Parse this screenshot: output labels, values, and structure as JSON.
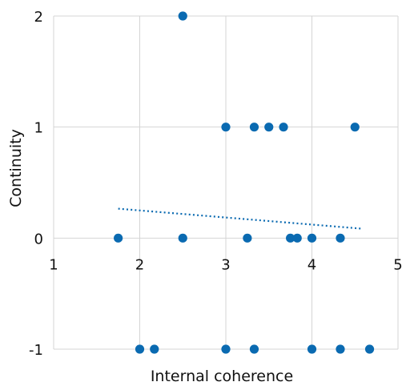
{
  "chart_data": {
    "type": "scatter",
    "xlabel": "Internal coherence",
    "ylabel": "Continuity",
    "xlim": [
      1,
      5
    ],
    "ylim": [
      -1,
      2
    ],
    "x_ticks": [
      "1",
      "2",
      "3",
      "4",
      "5"
    ],
    "y_ticks": [
      "-1",
      "0",
      "1",
      "2"
    ],
    "grid": true,
    "marker_color": "#0a6ab1",
    "trendline": {
      "style": "dotted",
      "color": "#0a6ab1",
      "x": [
        1.75,
        4.58
      ],
      "y": [
        0.265,
        0.085
      ]
    },
    "points": [
      {
        "x": 2.5,
        "y": 2
      },
      {
        "x": 3.0,
        "y": 1
      },
      {
        "x": 3.33,
        "y": 1
      },
      {
        "x": 3.5,
        "y": 1
      },
      {
        "x": 3.67,
        "y": 1
      },
      {
        "x": 4.5,
        "y": 1
      },
      {
        "x": 1.75,
        "y": 0
      },
      {
        "x": 2.5,
        "y": 0
      },
      {
        "x": 3.25,
        "y": 0
      },
      {
        "x": 3.75,
        "y": 0
      },
      {
        "x": 3.83,
        "y": 0
      },
      {
        "x": 4.0,
        "y": 0
      },
      {
        "x": 4.33,
        "y": 0
      },
      {
        "x": 2.0,
        "y": -1
      },
      {
        "x": 2.17,
        "y": -1
      },
      {
        "x": 3.0,
        "y": -1
      },
      {
        "x": 3.33,
        "y": -1
      },
      {
        "x": 4.0,
        "y": -1
      },
      {
        "x": 4.33,
        "y": -1
      },
      {
        "x": 4.67,
        "y": -1
      }
    ]
  }
}
